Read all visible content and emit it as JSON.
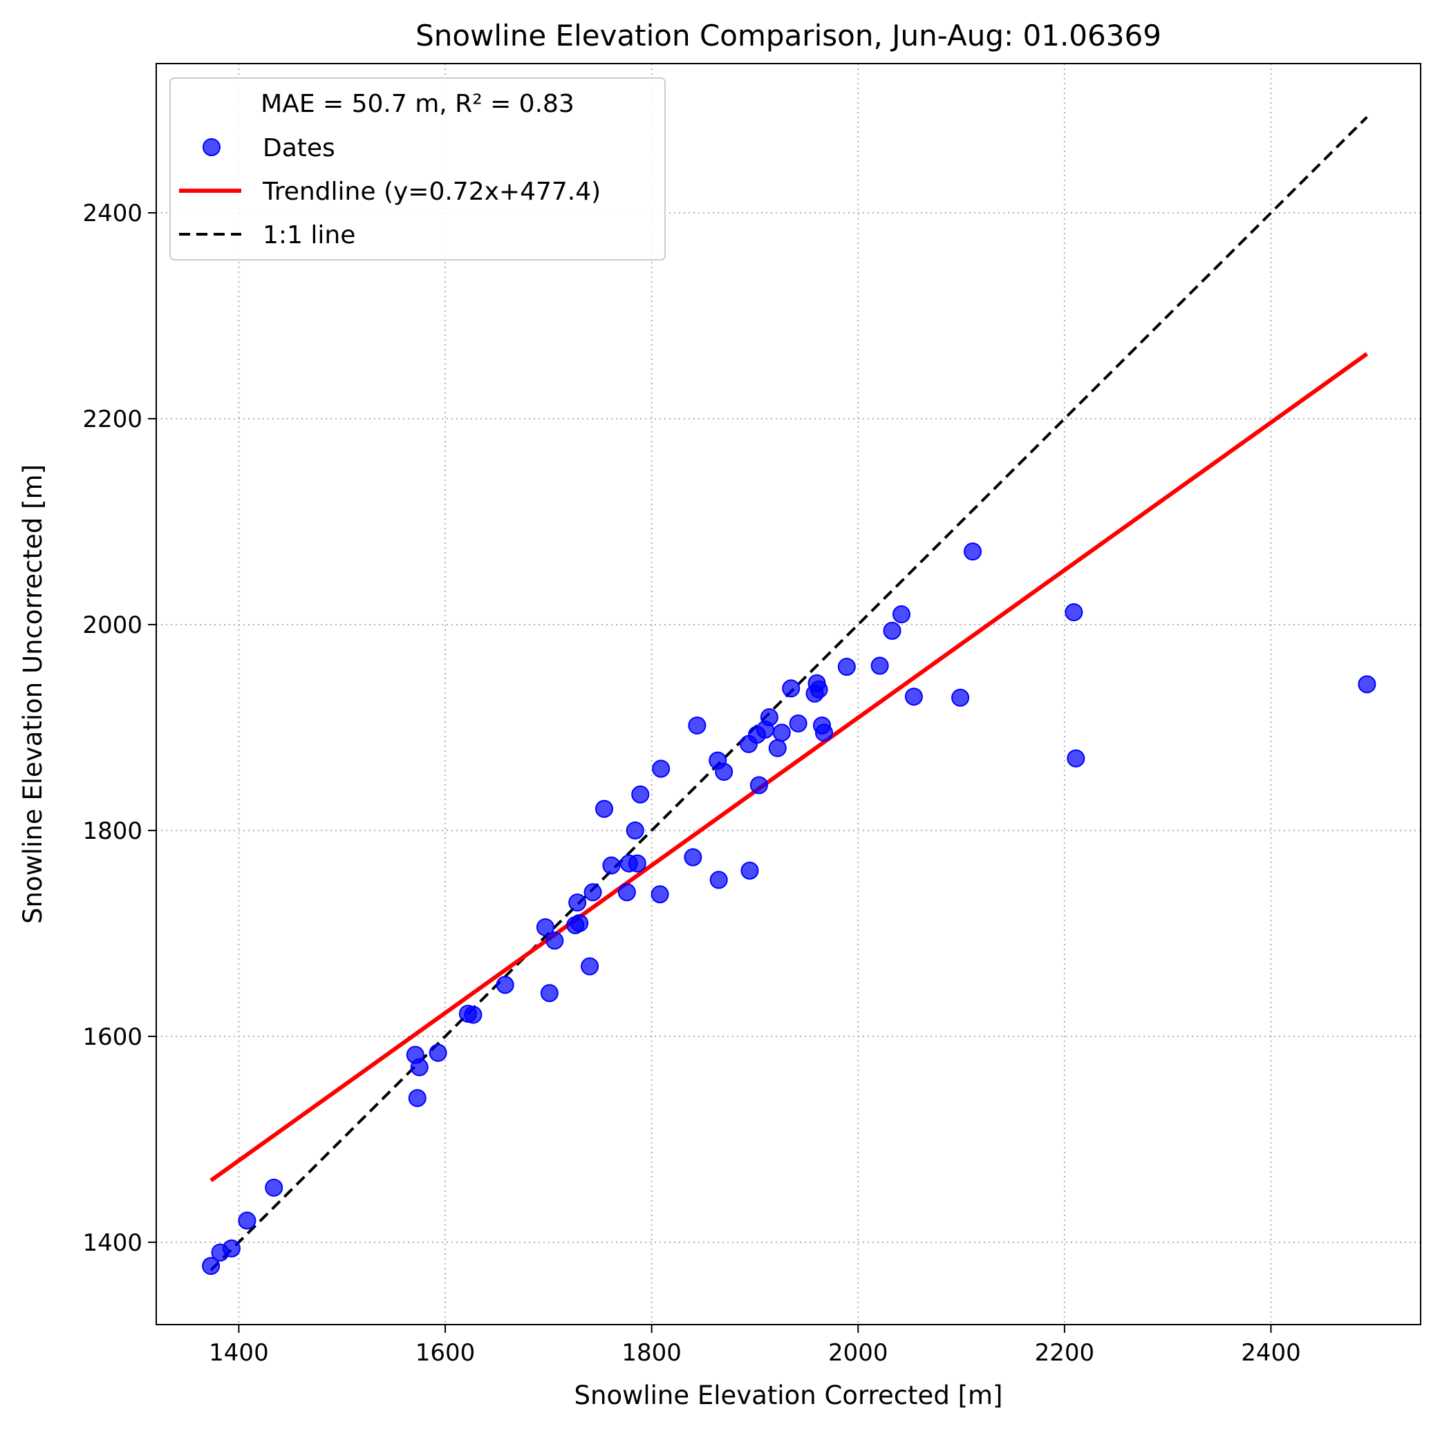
{
  "chart_data": {
    "type": "scatter",
    "title": "Snowline Elevation Comparison, Jun-Aug: 01.06369",
    "xlabel": "Snowline Elevation Corrected [m]",
    "ylabel": "Snowline Elevation Uncorrected [m]",
    "xlim": [
      1320,
      2545
    ],
    "ylim": [
      1320,
      2545
    ],
    "xticks": [
      1400,
      1600,
      1800,
      2000,
      2200,
      2400
    ],
    "yticks": [
      1400,
      1600,
      1800,
      2000,
      2200,
      2400
    ],
    "grid": true,
    "legend": {
      "placement": "top-left",
      "title": "MAE = 50.7 m,  R² = 0.83",
      "entries": [
        "Dates",
        "Trendline (y=0.72x+477.4)",
        "1:1 line"
      ]
    },
    "colors": {
      "points": "#0000ff",
      "trendline": "#ff0000",
      "one_to_one": "#000000"
    },
    "series": [
      {
        "name": "Dates",
        "kind": "scatter",
        "points": [
          [
            1373,
            1377
          ],
          [
            1382,
            1390
          ],
          [
            1393,
            1394
          ],
          [
            1408,
            1421
          ],
          [
            1434,
            1453
          ],
          [
            1571,
            1582
          ],
          [
            1573,
            1540
          ],
          [
            1575,
            1570
          ],
          [
            1593,
            1584
          ],
          [
            1622,
            1622
          ],
          [
            1627,
            1621
          ],
          [
            1658,
            1650
          ],
          [
            1697,
            1706
          ],
          [
            1701,
            1642
          ],
          [
            1706,
            1693
          ],
          [
            1726,
            1708
          ],
          [
            1728,
            1730
          ],
          [
            1730,
            1710
          ],
          [
            1740,
            1668
          ],
          [
            1743,
            1740
          ],
          [
            1754,
            1821
          ],
          [
            1761,
            1766
          ],
          [
            1776,
            1740
          ],
          [
            1778,
            1768
          ],
          [
            1784,
            1800
          ],
          [
            1786,
            1768
          ],
          [
            1789,
            1835
          ],
          [
            1808,
            1738
          ],
          [
            1809,
            1860
          ],
          [
            1840,
            1774
          ],
          [
            1844,
            1902
          ],
          [
            1864,
            1868
          ],
          [
            1865,
            1752
          ],
          [
            1870,
            1857
          ],
          [
            1894,
            1884
          ],
          [
            1895,
            1761
          ],
          [
            1902,
            1893
          ],
          [
            1904,
            1844
          ],
          [
            1910,
            1898
          ],
          [
            1914,
            1910
          ],
          [
            1922,
            1880
          ],
          [
            1926,
            1895
          ],
          [
            1935,
            1938
          ],
          [
            1942,
            1904
          ],
          [
            1958,
            1933
          ],
          [
            1960,
            1943
          ],
          [
            1962,
            1937
          ],
          [
            1965,
            1902
          ],
          [
            1967,
            1895
          ],
          [
            1989,
            1959
          ],
          [
            2021,
            1960
          ],
          [
            2033,
            1994
          ],
          [
            2042,
            2010
          ],
          [
            2054,
            1930
          ],
          [
            2099,
            1929
          ],
          [
            2111,
            2071
          ],
          [
            2209,
            2012
          ],
          [
            2211,
            1870
          ],
          [
            2493,
            1942
          ]
        ]
      },
      {
        "name": "Trendline (y=0.72x+477.4)",
        "kind": "line",
        "x": [
          1373,
          2493
        ],
        "y": [
          1460,
          2263
        ]
      },
      {
        "name": "1:1 line",
        "kind": "line",
        "x": [
          1373,
          2493
        ],
        "y": [
          1373,
          2493
        ]
      }
    ]
  }
}
